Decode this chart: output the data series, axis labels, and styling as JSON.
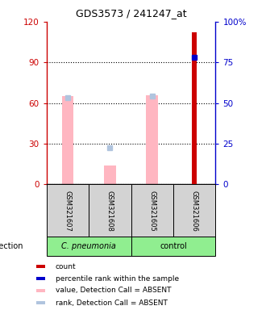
{
  "title": "GDS3573 / 241247_at",
  "samples": [
    "GSM321607",
    "GSM321608",
    "GSM321605",
    "GSM321606"
  ],
  "count_values": [
    0,
    0,
    0,
    112
  ],
  "value_absent": [
    65,
    14,
    66,
    0
  ],
  "rank_absent": [
    64,
    27,
    65,
    0
  ],
  "percentile_rank": [
    0,
    0,
    0,
    78
  ],
  "has_percentile": [
    false,
    false,
    false,
    true
  ],
  "ylim_left": [
    0,
    120
  ],
  "ylim_right": [
    0,
    100
  ],
  "yticks_left": [
    0,
    30,
    60,
    90,
    120
  ],
  "yticks_right": [
    0,
    25,
    50,
    75,
    100
  ],
  "ytick_labels_left": [
    "0",
    "30",
    "60",
    "90",
    "120"
  ],
  "ytick_labels_right": [
    "0",
    "25",
    "50",
    "75",
    "100%"
  ],
  "left_color": "#cc0000",
  "right_color": "#0000cc",
  "group_label": "infection",
  "group_bg_color": "#90EE90",
  "sample_box_color": "#d3d3d3",
  "color_count": "#cc0000",
  "color_percentile": "#0000cc",
  "color_value_absent": "#FFB6C1",
  "color_rank_absent": "#b0c4de",
  "legend_items": [
    {
      "color": "#cc0000",
      "label": "count"
    },
    {
      "color": "#0000cc",
      "label": "percentile rank within the sample"
    },
    {
      "color": "#FFB6C1",
      "label": "value, Detection Call = ABSENT"
    },
    {
      "color": "#b0c4de",
      "label": "rank, Detection Call = ABSENT"
    }
  ]
}
